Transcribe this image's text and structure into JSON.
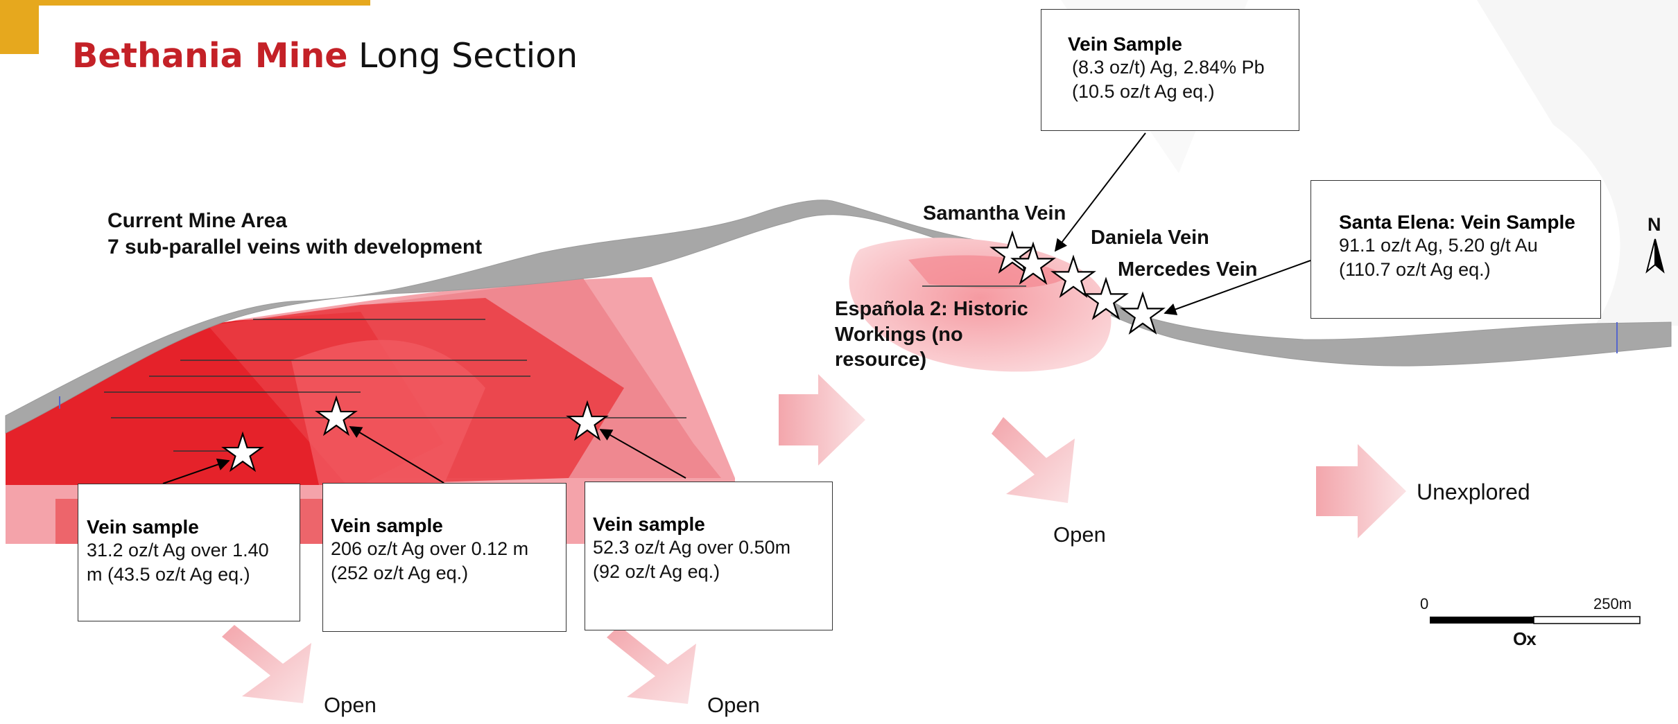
{
  "colors": {
    "accent": "#e6a81e",
    "title_red": "#c42127",
    "mine_red": "#e5222a",
    "surface_gray": "#a7a7a7"
  },
  "title": {
    "part1": "Bethania Mine",
    "part2": "Long Section"
  },
  "current_mine_area": {
    "line1": "Current Mine Area",
    "line2": "7 sub-parallel veins with development"
  },
  "espanola": {
    "line1": "Española 2: Historic",
    "line2": "Workings (no",
    "line3": "resource)"
  },
  "vein_labels": {
    "samantha": "Samantha Vein",
    "daniela": "Daniela Vein",
    "mercedes": "Mercedes Vein"
  },
  "samples": [
    {
      "heading": "Vein sample",
      "line1": "31.2 oz/t Ag over 1.40",
      "line2": "m (43.5 oz/t Ag eq.)"
    },
    {
      "heading": "Vein sample",
      "line1": "206 oz/t Ag over 0.12 m",
      "line2": "(252 oz/t Ag eq.)"
    },
    {
      "heading": "Vein sample",
      "line1": "52.3 oz/t Ag over 0.50m",
      "line2": "(92 oz/t Ag eq.)"
    }
  ],
  "top_sample": {
    "heading": "Vein Sample",
    "line1": "(8.3 oz/t) Ag, 2.84% Pb",
    "line2": "(10.5 oz/t Ag eq.)"
  },
  "santa_elena": {
    "heading": "Santa Elena: Vein Sample",
    "line1": "91.1 oz/t Ag, 5.20 g/t Au",
    "line2": "(110.7 oz/t Ag eq.)"
  },
  "open_labels": [
    "Open",
    "Open",
    "Open"
  ],
  "unexplored": "Unexplored",
  "north": "N",
  "scale": {
    "start": "0",
    "end": "250m"
  },
  "logo": "Ox"
}
